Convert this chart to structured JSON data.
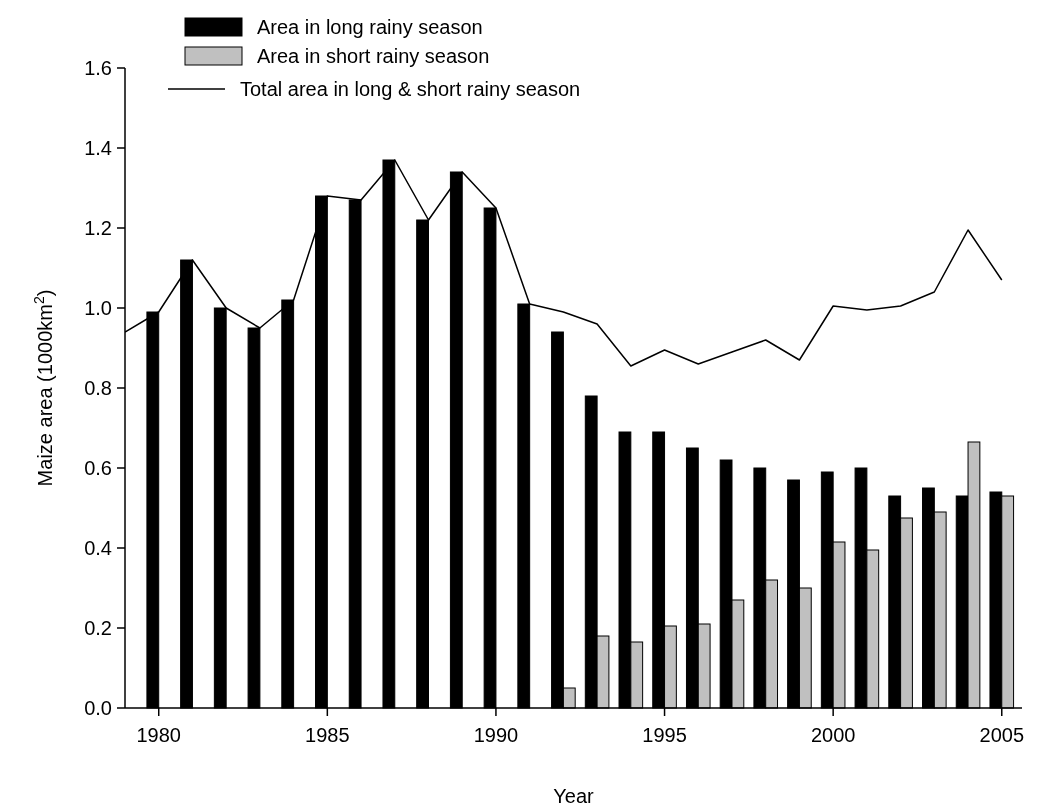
{
  "chart_data": {
    "type": "bar",
    "xlabel": "Year",
    "ylabel": "Maize area (1000km$^{2}$)",
    "x": [
      1980,
      1981,
      1982,
      1983,
      1984,
      1985,
      1986,
      1987,
      1988,
      1989,
      1990,
      1991,
      1992,
      1993,
      1994,
      1995,
      1996,
      1997,
      1998,
      1999,
      2000,
      2001,
      2002,
      2003,
      2004,
      2005
    ],
    "series": [
      {
        "name": "Area in long rainy season",
        "color": "#000000",
        "values": [
          0.99,
          1.12,
          1.0,
          0.95,
          1.02,
          1.28,
          1.27,
          1.37,
          1.22,
          1.34,
          1.25,
          1.01,
          0.94,
          0.78,
          0.69,
          0.69,
          0.65,
          0.62,
          0.6,
          0.57,
          0.59,
          0.6,
          0.53,
          0.55,
          0.53,
          0.54
        ]
      },
      {
        "name": "Area in short rainy season",
        "color": "#c0c0c0",
        "values": [
          null,
          null,
          null,
          null,
          null,
          null,
          null,
          null,
          null,
          null,
          null,
          null,
          0.05,
          0.18,
          0.165,
          0.205,
          0.21,
          0.27,
          0.32,
          0.3,
          0.415,
          0.395,
          0.475,
          0.49,
          0.665,
          0.53
        ]
      },
      {
        "name": "Total area in long & short rainy season",
        "type": "line",
        "color": "#000000",
        "x": [
          1979,
          1980,
          1981,
          1982,
          1983,
          1984,
          1985,
          1986,
          1987,
          1988,
          1989,
          1990,
          1991,
          1992,
          1993,
          1994,
          1995,
          1996,
          1997,
          1998,
          1999,
          2000,
          2001,
          2002,
          2003,
          2004,
          2005
        ],
        "values": [
          0.94,
          0.99,
          1.12,
          1.0,
          0.95,
          1.02,
          1.28,
          1.27,
          1.37,
          1.22,
          1.34,
          1.25,
          1.01,
          0.99,
          0.96,
          0.855,
          0.895,
          0.86,
          0.89,
          0.92,
          0.87,
          1.005,
          0.995,
          1.005,
          1.04,
          1.195,
          1.07
        ]
      }
    ],
    "xlim": [
      1979,
      2005.6
    ],
    "xticks": [
      1980,
      1985,
      1990,
      1995,
      2000,
      2005
    ],
    "ylim": [
      0,
      1.6
    ],
    "yticks": [
      {
        "value": 0,
        "label": "0.0"
      },
      {
        "value": 0.2,
        "label": "0.2"
      },
      {
        "value": 0.4,
        "label": "0.4"
      },
      {
        "value": 0.6,
        "label": "0.6"
      },
      {
        "value": 0.8,
        "label": "0.8"
      },
      {
        "value": 1,
        "label": "1.0"
      },
      {
        "value": 1.2,
        "label": "1.2"
      },
      {
        "value": 1.4,
        "label": "1.4"
      },
      {
        "value": 1.6,
        "label": "1.6"
      }
    ],
    "grid": false,
    "legend": "top left",
    "line_style": "solid",
    "marker": "none"
  }
}
